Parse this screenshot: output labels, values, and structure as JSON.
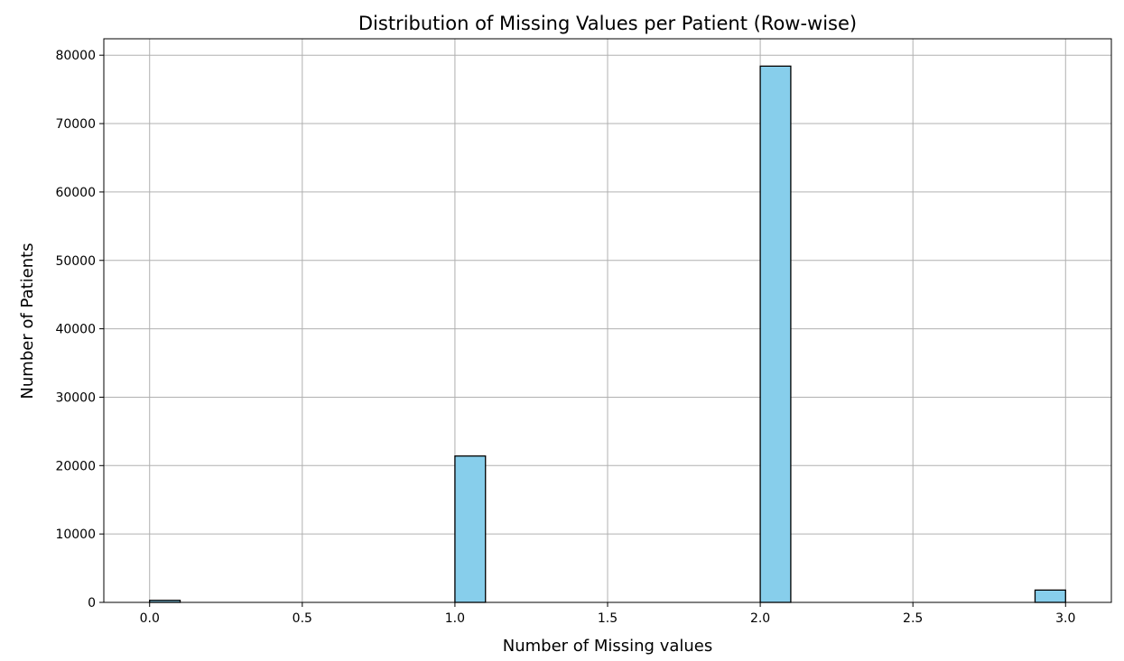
{
  "chart_data": {
    "type": "bar",
    "title": "Distribution of Missing Values per Patient (Row-wise)",
    "xlabel": "Number of Missing values",
    "ylabel": "Number of Patients",
    "xlim": [
      -0.15,
      3.15
    ],
    "ylim": [
      0,
      82400
    ],
    "xticks": [
      0.0,
      0.5,
      1.0,
      1.5,
      2.0,
      2.5,
      3.0
    ],
    "xtick_labels": [
      "0.0",
      "0.5",
      "1.0",
      "1.5",
      "2.0",
      "2.5",
      "3.0"
    ],
    "yticks": [
      0,
      10000,
      20000,
      30000,
      40000,
      50000,
      60000,
      70000,
      80000
    ],
    "ytick_labels": [
      "0",
      "10000",
      "20000",
      "30000",
      "40000",
      "50000",
      "60000",
      "70000",
      "80000"
    ],
    "bins": 30,
    "bin_width": 0.1,
    "bars": [
      {
        "x_start": 0.0,
        "x_end": 0.1,
        "value": 300
      },
      {
        "x_start": 1.0,
        "x_end": 1.1,
        "value": 21400
      },
      {
        "x_start": 2.0,
        "x_end": 2.1,
        "value": 78400
      },
      {
        "x_start": 2.9,
        "x_end": 3.0,
        "value": 1800
      }
    ],
    "grid": true,
    "colors": {
      "bar_fill": "#87CEEB",
      "bar_edge": "#000000",
      "grid": "#b0b0b0"
    }
  }
}
